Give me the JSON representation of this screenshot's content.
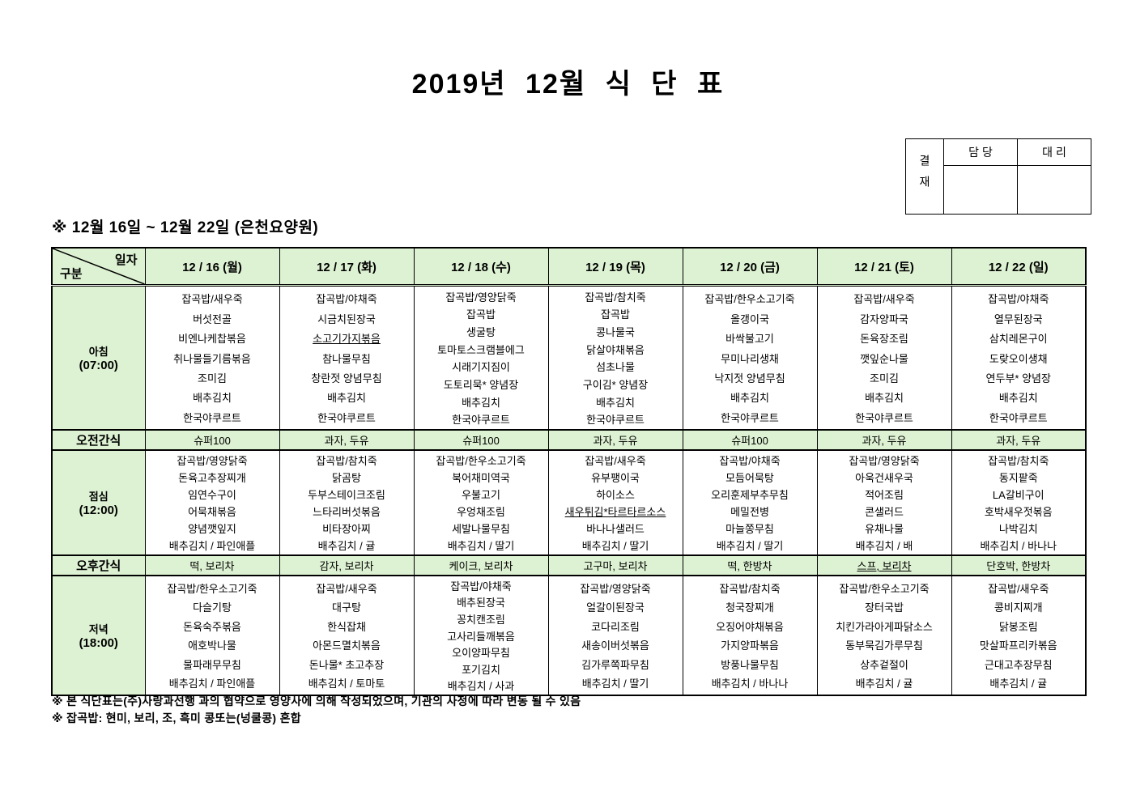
{
  "page": {
    "title": "2019년 12월 식 단 표",
    "subtitle": "※ 12월 16일 ~ 12월 22일 (은천요양원)",
    "notes": [
      "※ 본 식단표는(주)사랑과선행 과의 협약으로 영양사에 의해 작성되었으며, 기관의 사정에 따라 변동 될 수 있음",
      "※ 잡곡밥: 현미, 보리, 조, 흑미 콩또는(넝쿨콩) 혼합"
    ]
  },
  "approval": {
    "title": "결재",
    "columns": [
      "담 당",
      "대 리"
    ]
  },
  "colors": {
    "table_green": "#ddf2d2",
    "border": "#000000"
  },
  "table": {
    "corner": {
      "top_right": "일자",
      "bottom_left": "구분"
    },
    "columns": [
      "12 / 16 (월)",
      "12 / 17 (화)",
      "12 / 18 (수)",
      "12 / 19 (목)",
      "12 / 20 (금)",
      "12 / 21 (토)",
      "12 / 22 (일)"
    ],
    "underlined_items": [
      "소고기가지볶음",
      "새우튀김*타르타르소스",
      "스프, 보리차"
    ],
    "rows": [
      {
        "type": "breakfast",
        "label": "아침",
        "time": "(07:00)",
        "cells": [
          [
            "잡곡밥/새우죽",
            "버섯전골",
            "비엔나케찹볶음",
            "취나물들기름볶음",
            "조미김",
            "배추김치",
            "한국야쿠르트"
          ],
          [
            "잡곡밥/야채죽",
            "시금치된장국",
            "소고기가지볶음",
            "참나물무침",
            "창란젓 양념무침",
            "배추김치",
            "한국야쿠르트"
          ],
          [
            "잡곡밥/영양닭죽",
            "잡곡밥",
            "생굴탕",
            "토마토스크램블에그",
            "시래기지짐이",
            "도토리묵* 양념장",
            "배추김치",
            "한국야쿠르트"
          ],
          [
            "잡곡밥/참치죽",
            "잡곡밥",
            "콩나물국",
            "닭살야채볶음",
            "섬초나물",
            "구이김* 양념장",
            "배추김치",
            "한국야쿠르트"
          ],
          [
            "잡곡밥/한우소고기죽",
            "올갱이국",
            "바싹불고기",
            "무미나리생채",
            "낙지젓 양념무침",
            "배추김치",
            "한국야쿠르트"
          ],
          [
            "잡곡밥/새우죽",
            "감자양파국",
            "돈육장조림",
            "깻잎순나물",
            "조미김",
            "배추김치",
            "한국야쿠르트"
          ],
          [
            "잡곡밥/야채죽",
            "열무된장국",
            "삼치레몬구이",
            "도랒오이생채",
            "연두부* 양념장",
            "배추김치",
            "한국야쿠르트"
          ]
        ]
      },
      {
        "type": "am_snack",
        "label": "오전간식",
        "cells": [
          "슈퍼100",
          "과자, 두유",
          "슈퍼100",
          "과자, 두유",
          "슈퍼100",
          "과자, 두유",
          "과자, 두유"
        ]
      },
      {
        "type": "lunch",
        "label": "점심",
        "time": "(12:00)",
        "cells": [
          [
            "잡곡밥/영양닭죽",
            "돈육고추장찌개",
            "임연수구이",
            "어묵채볶음",
            "양념깻잎지",
            "배추김치 / 파인애플"
          ],
          [
            "잡곡밥/참치죽",
            "닭곰탕",
            "두부스테이크조림",
            "느타리버섯볶음",
            "비타장아찌",
            "배추김치 / 귤"
          ],
          [
            "잡곡밥/한우소고기죽",
            "북어채미역국",
            "우불고기",
            "우엉채조림",
            "세발나물무침",
            "배추김치 / 딸기"
          ],
          [
            "잡곡밥/새우죽",
            "유부팽이국",
            "하이소스",
            "새우튀김*타르타르소스",
            "바나나샐러드",
            "배추김치 / 딸기"
          ],
          [
            "잡곡밥/야채죽",
            "모듬어묵탕",
            "오리훈제부추무침",
            "메밀전병",
            "마늘쫑무침",
            "배추김치 / 딸기"
          ],
          [
            "잡곡밥/영양닭죽",
            "아욱건새우국",
            "적어조림",
            "콘샐러드",
            "유채나물",
            "배추김치 / 배"
          ],
          [
            "잡곡밥/참치죽",
            "동지팥죽",
            "LA갈비구이",
            "호박새우젓볶음",
            "나박김치",
            "배추김치 / 바나나"
          ]
        ]
      },
      {
        "type": "pm_snack",
        "label": "오후간식",
        "cells": [
          "떡, 보리차",
          "감자, 보리차",
          "케이크, 보리차",
          "고구마, 보리차",
          "떡, 한방차",
          "스프, 보리차",
          "단호박, 한방차"
        ]
      },
      {
        "type": "dinner",
        "label": "저녁",
        "time": "(18:00)",
        "cells": [
          [
            "잡곡밥/한우소고기죽",
            "다슬기탕",
            "돈육숙주볶음",
            "애호박나물",
            "물파래무무침",
            "배추김치 / 파인애플"
          ],
          [
            "잡곡밥/새우죽",
            "대구탕",
            "한식잡채",
            "아몬드멸치볶음",
            "돈나물* 초고추장",
            "배추김치 / 토마토"
          ],
          [
            "잡곡밥/야채죽",
            "배추된장국",
            "꽁치캔조림",
            "고사리들깨볶음",
            "오이양파무침",
            "포기김치",
            "배추김치 / 사과"
          ],
          [
            "잡곡밥/영양닭죽",
            "얼갈이된장국",
            "코다리조림",
            "새송이버섯볶음",
            "김가루쪽파무침",
            "배추김치 / 딸기"
          ],
          [
            "잡곡밥/참치죽",
            "청국장찌개",
            "오징어야채볶음",
            "가지양파볶음",
            "방풍나물무침",
            "배추김치 / 바나나"
          ],
          [
            "잡곡밥/한우소고기죽",
            "장터국밥",
            "치킨가라아게파닭소스",
            "동부묵김가루무침",
            "상추겉절이",
            "배추김치 / 귤"
          ],
          [
            "잡곡밥/새우죽",
            "콩비지찌개",
            "닭봉조림",
            "맛살파프리카볶음",
            "근대고추장무침",
            "배추김치 / 귤"
          ]
        ]
      }
    ]
  }
}
